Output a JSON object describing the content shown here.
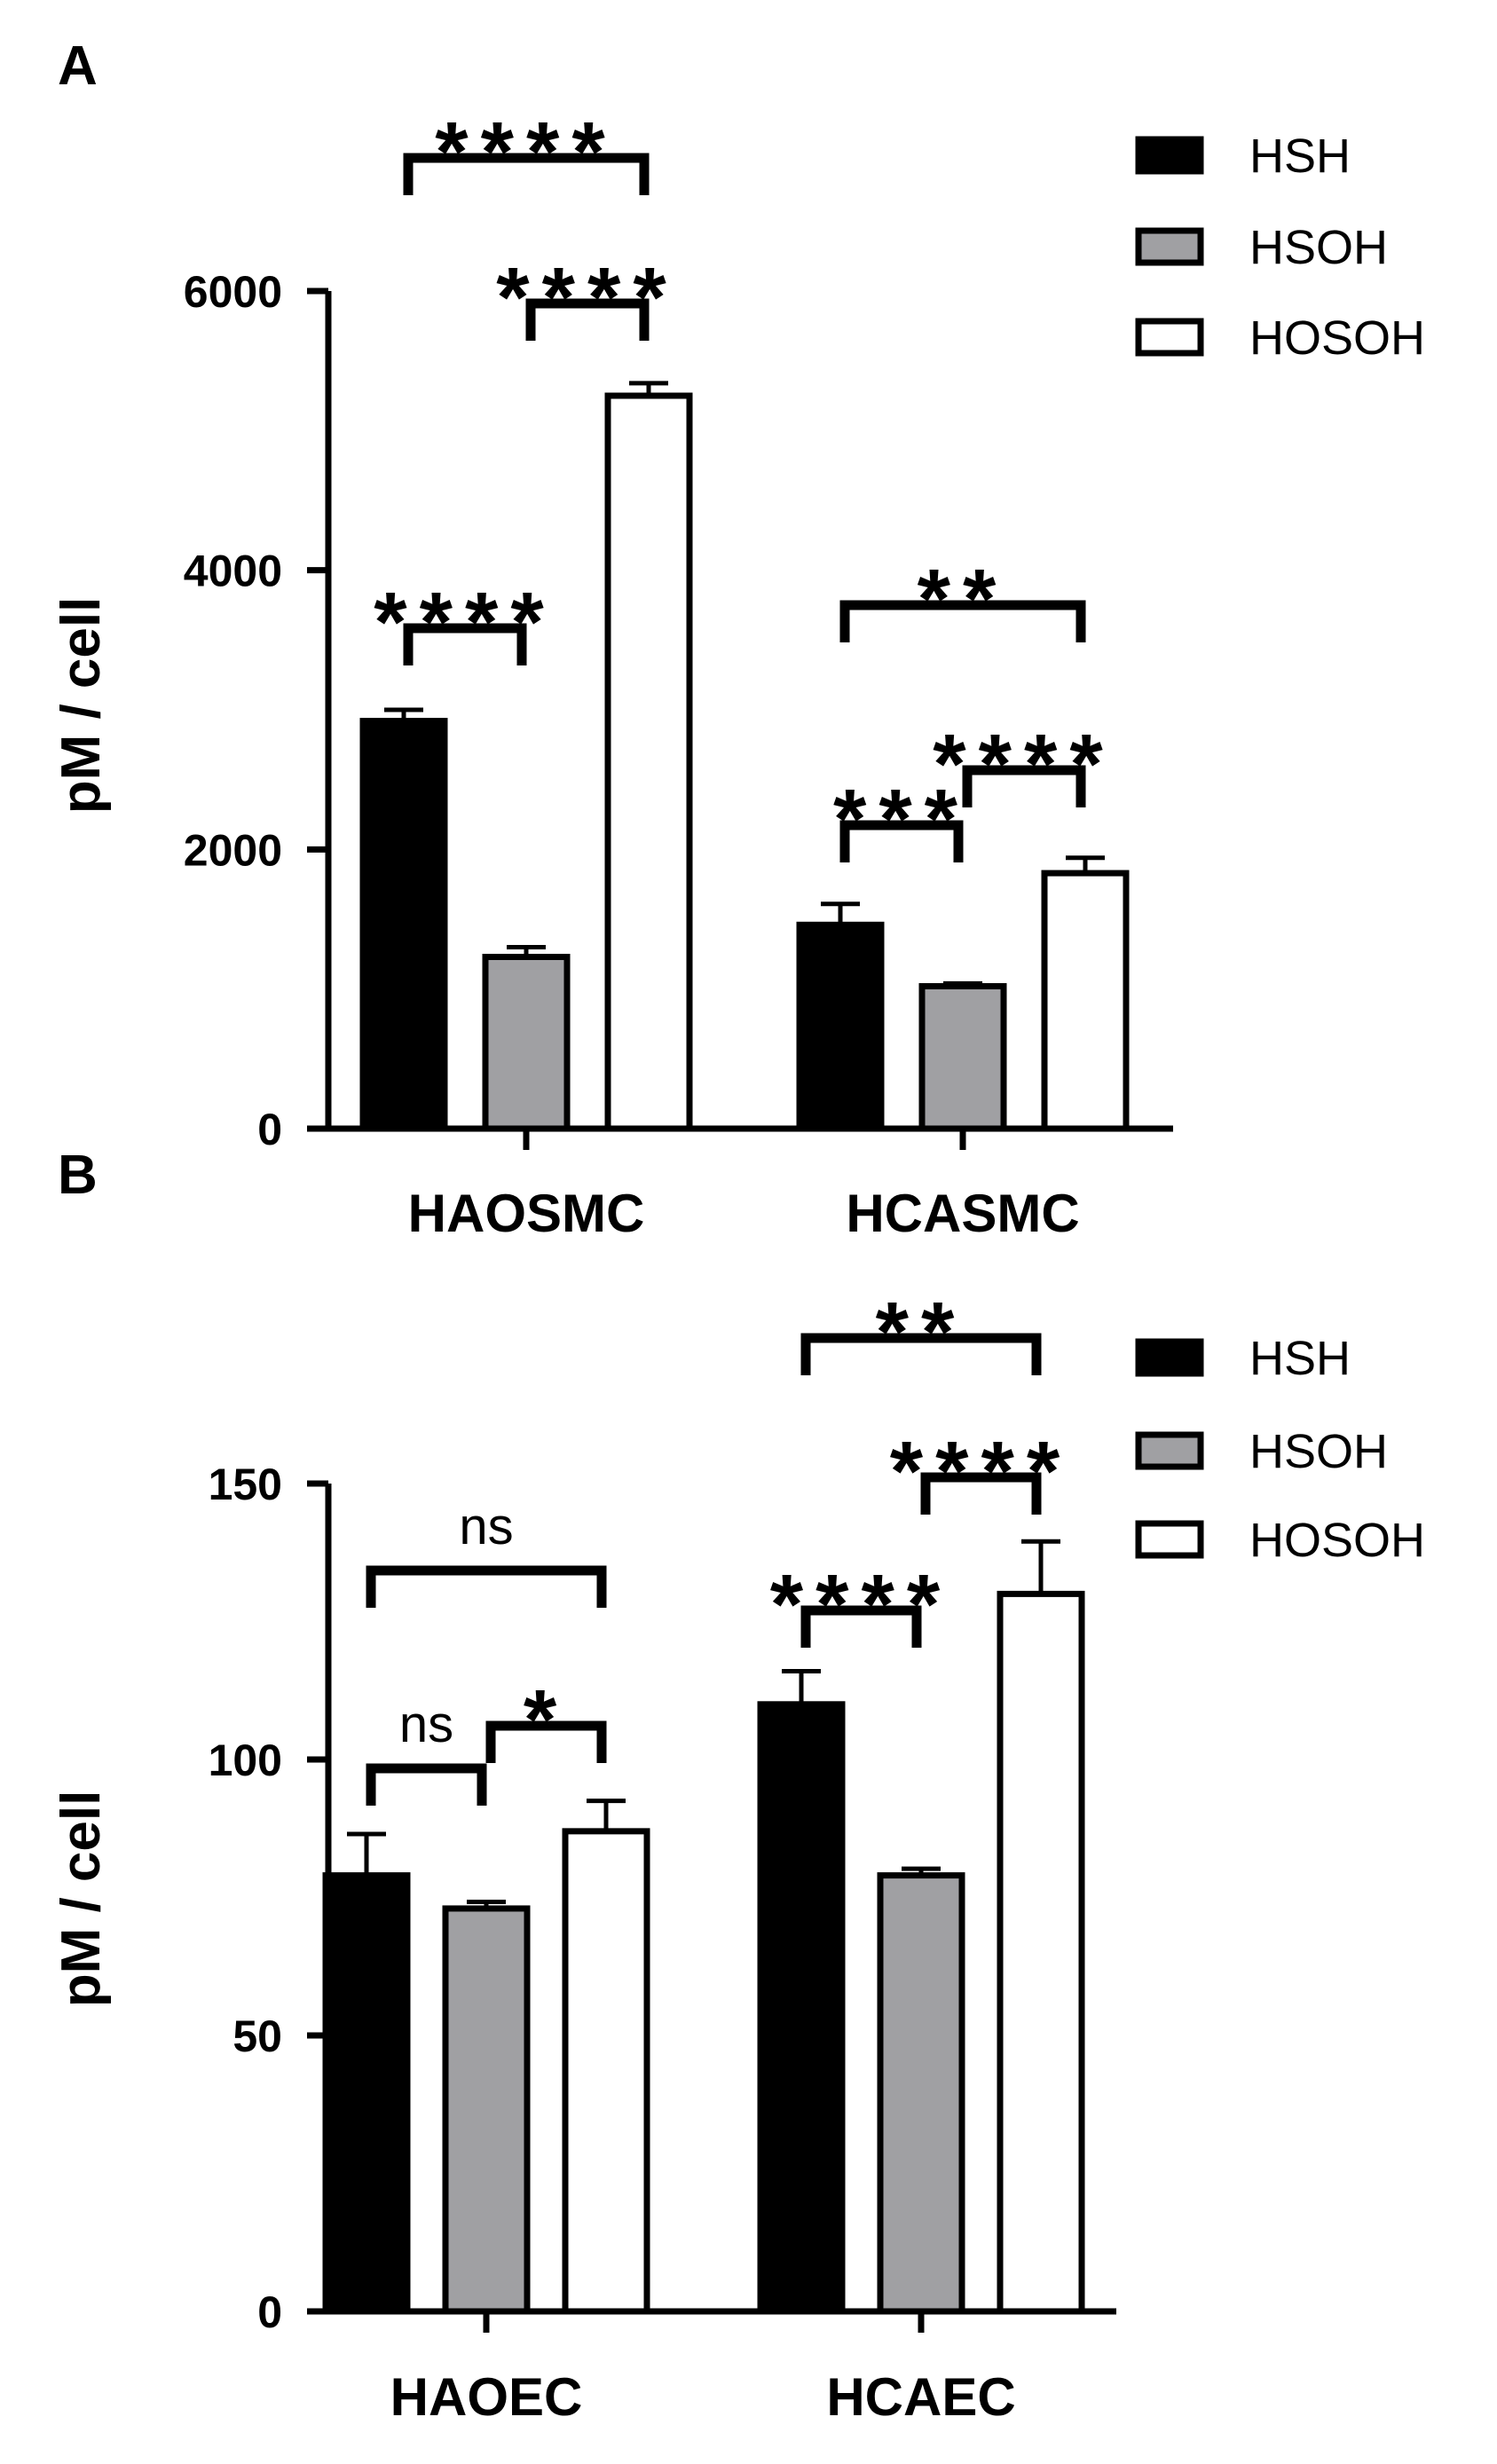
{
  "chart_data": [
    {
      "type": "bar",
      "panel": "A",
      "ylabel": "pM / cell",
      "ylim": [
        0,
        6000
      ],
      "yticks": [
        "0",
        "2000",
        "4000",
        "6000"
      ],
      "ytick_values": [
        0,
        2000,
        4000,
        6000
      ],
      "categories": [
        "HAOSMC",
        "HCASMC"
      ],
      "series": [
        {
          "name": "HSH",
          "values": [
            2920,
            1460
          ],
          "errors": [
            80,
            150
          ]
        },
        {
          "name": "HSOH",
          "values": [
            1230,
            1020
          ],
          "errors": [
            70,
            20
          ]
        },
        {
          "name": "HOSOH",
          "values": [
            5250,
            1830
          ],
          "errors": [
            90,
            110
          ]
        }
      ],
      "comparisons": [
        {
          "group": 0,
          "from": 0,
          "to": 2,
          "label": "****"
        },
        {
          "group": 0,
          "from": 1,
          "to": 2,
          "label": "****"
        },
        {
          "group": 0,
          "from": 0,
          "to": 1,
          "label": "****"
        },
        {
          "group": 1,
          "from": 0,
          "to": 2,
          "label": "**"
        },
        {
          "group": 1,
          "from": 1,
          "to": 2,
          "label": "****"
        },
        {
          "group": 1,
          "from": 0,
          "to": 1,
          "label": "***"
        }
      ],
      "legend": {
        "items": [
          "HSH",
          "HSOH",
          "HOSOH"
        ],
        "position": "top-right"
      }
    },
    {
      "type": "bar",
      "panel": "B",
      "ylabel": "pM / cell",
      "ylim": [
        0,
        150
      ],
      "yticks": [
        "0",
        "50",
        "100",
        "150"
      ],
      "ytick_values": [
        0,
        50,
        100,
        150
      ],
      "categories": [
        "HAOEC",
        "HCAEC"
      ],
      "series": [
        {
          "name": "HSH",
          "values": [
            79,
            110
          ],
          "errors": [
            7.5,
            6
          ]
        },
        {
          "name": "HSOH",
          "values": [
            73,
            79
          ],
          "errors": [
            1.2,
            1.2
          ]
        },
        {
          "name": "HOSOH",
          "values": [
            87,
            130
          ],
          "errors": [
            5.5,
            9.5
          ]
        }
      ],
      "comparisons": [
        {
          "group": 0,
          "from": 0,
          "to": 2,
          "label": "ns"
        },
        {
          "group": 0,
          "from": 0,
          "to": 1,
          "label": "ns"
        },
        {
          "group": 0,
          "from": 1,
          "to": 2,
          "label": "*"
        },
        {
          "group": 1,
          "from": 0,
          "to": 2,
          "label": "**"
        },
        {
          "group": 1,
          "from": 1,
          "to": 2,
          "label": "****"
        },
        {
          "group": 1,
          "from": 0,
          "to": 1,
          "label": "****"
        }
      ],
      "legend": {
        "items": [
          "HSH",
          "HSOH",
          "HOSOH"
        ],
        "position": "top-right"
      }
    }
  ],
  "colors": {
    "HSH": "#000000",
    "HSOH": "#a0a0a3",
    "HOSOH": "#ffffff",
    "stroke": "#000000"
  }
}
